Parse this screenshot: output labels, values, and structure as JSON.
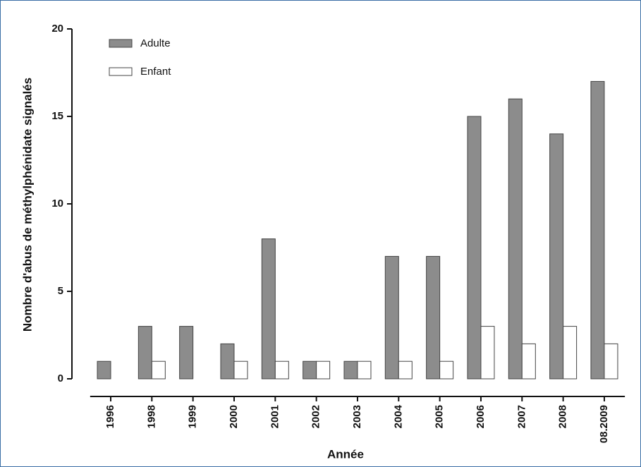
{
  "chart_data": {
    "type": "bar",
    "xlabel": "Année",
    "ylabel": "Nombre d'abus de méthylphénidate signalés",
    "categories": [
      "1996",
      "1998",
      "1999",
      "2000",
      "2001",
      "2002",
      "2003",
      "2004",
      "2005",
      "2006",
      "2007",
      "2008",
      "08.2009"
    ],
    "series": [
      {
        "name": "Adulte",
        "color": "#8c8c8c",
        "values": [
          1,
          3,
          3,
          2,
          8,
          1,
          1,
          7,
          7,
          15,
          16,
          14,
          17
        ]
      },
      {
        "name": "Enfant",
        "color": "#ffffff",
        "values": [
          0,
          1,
          0,
          1,
          1,
          1,
          1,
          1,
          1,
          3,
          2,
          3,
          2
        ]
      }
    ],
    "ylim": [
      0,
      20
    ],
    "yticks": [
      0,
      5,
      10,
      15,
      20
    ],
    "legend": "top-left"
  }
}
